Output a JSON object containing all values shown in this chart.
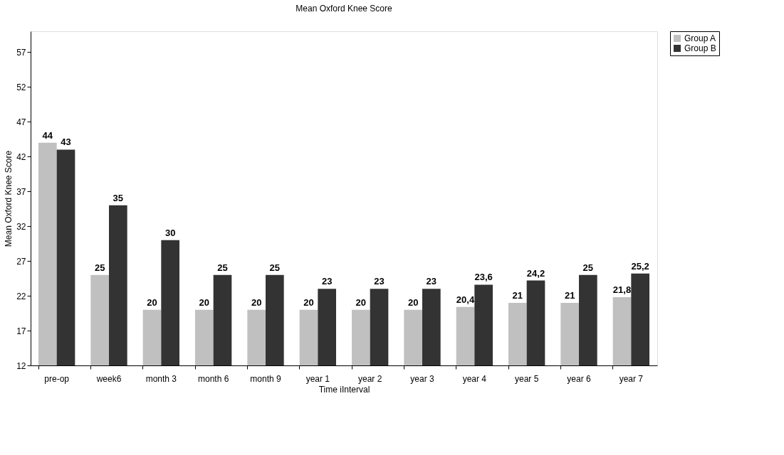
{
  "chart_data": {
    "type": "bar",
    "title": "Mean Oxford Knee Score",
    "xlabel": "Time iInterval",
    "ylabel": "Mean Oxford Knee Score",
    "categories": [
      "pre-op",
      "week6",
      "month 3",
      "month 6",
      "month 9",
      "year 1",
      "year 2",
      "year 3",
      "year 4",
      "year 5",
      "year 6",
      "year 7"
    ],
    "series": [
      {
        "name": "Group A",
        "color": "#c0c0c0",
        "values": [
          44,
          25,
          20,
          20,
          20,
          20,
          20,
          20,
          20.4,
          21,
          21,
          21.8
        ],
        "value_labels": [
          "44",
          "25",
          "20",
          "20",
          "20",
          "20",
          "20",
          "20",
          "20,4",
          "21",
          "21",
          "21,8"
        ]
      },
      {
        "name": "Group B",
        "color": "#333333",
        "values": [
          43,
          35,
          30,
          25,
          25,
          23,
          23,
          23,
          23.6,
          24.2,
          25,
          25.2
        ],
        "value_labels": [
          "43",
          "35",
          "30",
          "25",
          "25",
          "23",
          "23",
          "23",
          "23,6",
          "24,2",
          "25",
          "25,2"
        ]
      }
    ],
    "ylim": [
      12,
      60
    ],
    "yticks": [
      12,
      17,
      22,
      27,
      32,
      37,
      42,
      47,
      52,
      57
    ],
    "grid": false,
    "legend": "right"
  }
}
